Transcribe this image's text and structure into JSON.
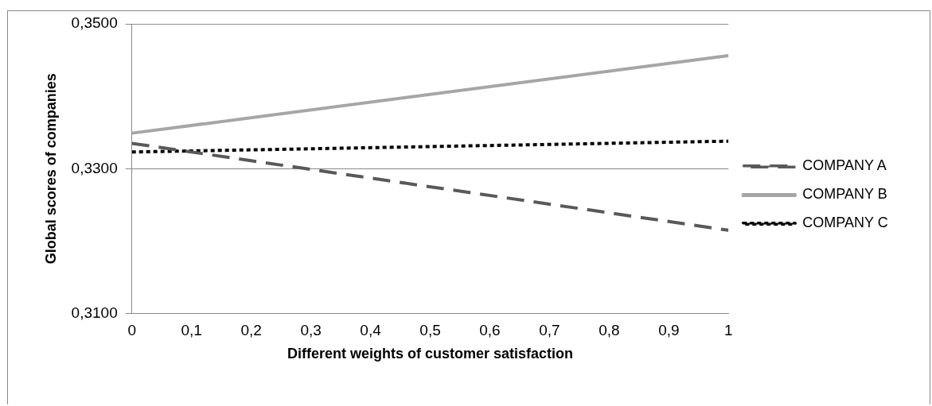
{
  "chart_data": {
    "type": "line",
    "xlabel": "Different weights of customer satisfaction",
    "ylabel": "Global scores of companies",
    "x": [
      0,
      1
    ],
    "xlim": [
      0,
      1
    ],
    "xticks": [
      {
        "value": 0,
        "label": "0"
      },
      {
        "value": 0.1,
        "label": "0,1"
      },
      {
        "value": 0.2,
        "label": "0,2"
      },
      {
        "value": 0.3,
        "label": "0,3"
      },
      {
        "value": 0.4,
        "label": "0,4"
      },
      {
        "value": 0.5,
        "label": "0,5"
      },
      {
        "value": 0.6,
        "label": "0,6"
      },
      {
        "value": 0.7,
        "label": "0,7"
      },
      {
        "value": 0.8,
        "label": "0,8"
      },
      {
        "value": 0.9,
        "label": "0,9"
      },
      {
        "value": 1,
        "label": "1"
      }
    ],
    "ylim": [
      0.31,
      0.35
    ],
    "yticks": [
      {
        "value": 0.31,
        "label": "0,3100"
      },
      {
        "value": 0.33,
        "label": "0,3300"
      },
      {
        "value": 0.35,
        "label": "0,3500"
      }
    ],
    "series": [
      {
        "name": "COMPANY A",
        "color": "#595959",
        "line_style": "dashed",
        "values": [
          0.3335,
          0.3215
        ]
      },
      {
        "name": "COMPANY B",
        "color": "#a6a6a6",
        "line_style": "solid",
        "values": [
          0.3349,
          0.3456
        ]
      },
      {
        "name": "COMPANY C",
        "color": "#000000",
        "line_style": "dotted",
        "values": [
          0.3323,
          0.3338
        ]
      }
    ],
    "grid": "y",
    "legend": "right",
    "marker": "none"
  }
}
